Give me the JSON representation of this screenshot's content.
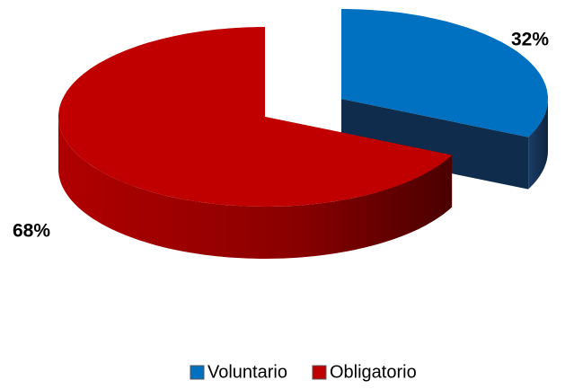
{
  "chart_data": {
    "type": "pie",
    "categories": [
      "Voluntario",
      "Obligatorio"
    ],
    "values": [
      32,
      68
    ],
    "value_labels": [
      "32%",
      "68%"
    ],
    "colors": [
      "#0070c0",
      "#c00000"
    ],
    "legend": "bottom"
  }
}
